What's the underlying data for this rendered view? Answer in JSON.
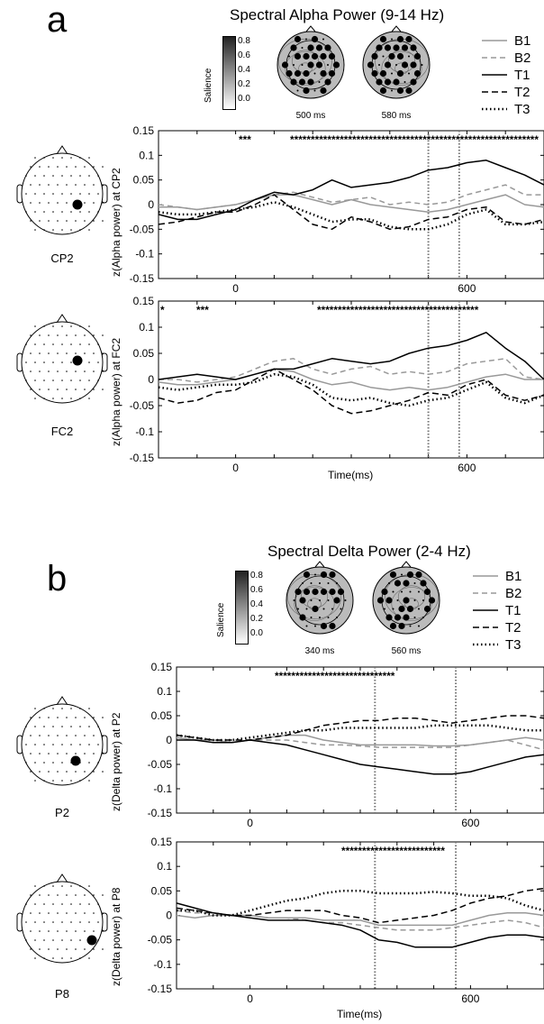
{
  "panels": [
    {
      "letter": "a",
      "title": "Spectral Alpha Power (9-14 Hz)",
      "colorbar": {
        "label": "Salience",
        "ticks": [
          "0.8",
          "0.6",
          "0.4",
          "0.2",
          "0.0"
        ]
      },
      "topo_times": [
        "500 ms",
        "580 ms"
      ],
      "legend": [
        "B1",
        "B2",
        "T1",
        "T2",
        "T3"
      ],
      "plots": [
        {
          "electrode": "CP2",
          "ylabel": "z(Alpha power) at CP2",
          "xlabel": "",
          "sig": "***",
          "sig2": "************************************************************"
        },
        {
          "electrode": "FC2",
          "ylabel": "z(Alpha power) at FC2",
          "xlabel": "Time(ms)",
          "sig": "***",
          "sig2": "***************************************",
          "sig0": "*"
        }
      ]
    },
    {
      "letter": "b",
      "title": "Spectral Delta Power (2-4 Hz)",
      "colorbar": {
        "label": "Salience",
        "ticks": [
          "0.8",
          "0.6",
          "0.4",
          "0.2",
          "0.0"
        ]
      },
      "topo_times": [
        "340 ms",
        "560 ms"
      ],
      "legend": [
        "B1",
        "B2",
        "T1",
        "T2",
        "T3"
      ],
      "plots": [
        {
          "electrode": "P2",
          "ylabel": "z(Delta power) at P2",
          "xlabel": "",
          "sig": "",
          "sig2": "*****************************"
        },
        {
          "electrode": "P8",
          "ylabel": "z(Delta power) at P8",
          "xlabel": "Time(ms)",
          "sig": "",
          "sig2": "*************************"
        }
      ]
    }
  ],
  "chart_data": [
    {
      "type": "line",
      "title": "",
      "ylabel": "z(Alpha power) at CP2",
      "xlabel": "",
      "xlim": [
        -200,
        800
      ],
      "ylim": [
        -0.15,
        0.15
      ],
      "xticks": [
        0,
        600
      ],
      "yticks": [
        "0.15",
        "0.1",
        "0.05",
        "0",
        "-0.05",
        "-0.1",
        "-0.15"
      ],
      "vlines": [
        500,
        580
      ],
      "x": [
        -200,
        -150,
        -100,
        -50,
        0,
        50,
        100,
        150,
        200,
        250,
        300,
        350,
        400,
        450,
        500,
        550,
        600,
        650,
        700,
        750,
        800
      ],
      "series": [
        {
          "name": "B1",
          "values": [
            -0.005,
            -0.005,
            -0.01,
            -0.005,
            0.0,
            0.01,
            0.02,
            0.02,
            0.01,
            0.0,
            0.01,
            0.0,
            -0.005,
            -0.01,
            -0.015,
            -0.01,
            0.0,
            0.01,
            0.02,
            0.0,
            -0.005
          ]
        },
        {
          "name": "B2",
          "values": [
            0.0,
            -0.005,
            -0.01,
            -0.005,
            0.0,
            0.01,
            0.02,
            0.025,
            0.015,
            0.005,
            0.01,
            0.015,
            0.0,
            0.005,
            0.0,
            0.005,
            0.02,
            0.03,
            0.04,
            0.02,
            0.02
          ]
        },
        {
          "name": "T1",
          "values": [
            -0.02,
            -0.03,
            -0.03,
            -0.02,
            -0.01,
            0.01,
            0.025,
            0.02,
            0.03,
            0.05,
            0.035,
            0.04,
            0.045,
            0.055,
            0.07,
            0.075,
            0.085,
            0.09,
            0.075,
            0.06,
            0.04
          ]
        },
        {
          "name": "T2",
          "values": [
            -0.04,
            -0.035,
            -0.025,
            -0.015,
            -0.015,
            0.0,
            0.02,
            -0.01,
            -0.04,
            -0.05,
            -0.025,
            -0.035,
            -0.05,
            -0.045,
            -0.03,
            -0.025,
            -0.01,
            -0.005,
            -0.035,
            -0.04,
            -0.03
          ]
        },
        {
          "name": "T3",
          "values": [
            -0.015,
            -0.02,
            -0.02,
            -0.015,
            -0.01,
            -0.005,
            0.005,
            -0.005,
            -0.02,
            -0.035,
            -0.03,
            -0.03,
            -0.045,
            -0.05,
            -0.05,
            -0.04,
            -0.02,
            -0.01,
            -0.04,
            -0.04,
            -0.035
          ]
        }
      ]
    },
    {
      "type": "line",
      "title": "",
      "ylabel": "z(Alpha power) at FC2",
      "xlabel": "Time(ms)",
      "xlim": [
        -200,
        800
      ],
      "ylim": [
        -0.15,
        0.15
      ],
      "xticks": [
        0,
        600
      ],
      "yticks": [
        "0.15",
        "0.1",
        "0.05",
        "0",
        "-0.05",
        "-0.1",
        "-0.15"
      ],
      "vlines": [
        500,
        580
      ],
      "x": [
        -200,
        -150,
        -100,
        -50,
        0,
        50,
        100,
        150,
        200,
        250,
        300,
        350,
        400,
        450,
        500,
        550,
        600,
        650,
        700,
        750,
        800
      ],
      "series": [
        {
          "name": "B1",
          "values": [
            -0.005,
            -0.01,
            -0.01,
            -0.005,
            0.0,
            0.01,
            0.02,
            0.015,
            0.0,
            -0.01,
            -0.005,
            -0.015,
            -0.02,
            -0.015,
            -0.02,
            -0.015,
            -0.005,
            0.005,
            0.01,
            0.0,
            0.0
          ]
        },
        {
          "name": "B2",
          "values": [
            0.0,
            0.0,
            -0.005,
            0.0,
            0.005,
            0.02,
            0.035,
            0.04,
            0.02,
            0.01,
            0.02,
            0.025,
            0.01,
            0.015,
            0.01,
            0.015,
            0.03,
            0.035,
            0.04,
            0.005,
            0.0
          ]
        },
        {
          "name": "T1",
          "values": [
            0.0,
            0.005,
            0.01,
            0.005,
            0.0,
            0.01,
            0.02,
            0.02,
            0.03,
            0.04,
            0.035,
            0.03,
            0.035,
            0.05,
            0.06,
            0.065,
            0.075,
            0.09,
            0.06,
            0.035,
            0.0
          ]
        },
        {
          "name": "T2",
          "values": [
            -0.035,
            -0.045,
            -0.04,
            -0.025,
            -0.02,
            0.0,
            0.02,
            0.0,
            -0.02,
            -0.05,
            -0.065,
            -0.06,
            -0.05,
            -0.04,
            -0.025,
            -0.03,
            -0.01,
            0.0,
            -0.03,
            -0.04,
            -0.03
          ]
        },
        {
          "name": "T3",
          "values": [
            -0.015,
            -0.02,
            -0.015,
            -0.01,
            -0.01,
            -0.005,
            0.01,
            0.005,
            -0.01,
            -0.035,
            -0.04,
            -0.035,
            -0.045,
            -0.05,
            -0.04,
            -0.035,
            -0.02,
            -0.005,
            -0.035,
            -0.045,
            -0.03
          ]
        }
      ]
    },
    {
      "type": "line",
      "title": "",
      "ylabel": "z(Delta power) at P2",
      "xlabel": "",
      "xlim": [
        -200,
        800
      ],
      "ylim": [
        -0.15,
        0.15
      ],
      "xticks": [
        0,
        600
      ],
      "yticks": [
        "0.15",
        "0.1",
        "0.05",
        "0",
        "-0.05",
        "-0.1",
        "-0.15"
      ],
      "vlines": [
        340,
        560
      ],
      "x": [
        -200,
        -150,
        -100,
        -50,
        0,
        50,
        100,
        150,
        200,
        250,
        300,
        350,
        400,
        450,
        500,
        550,
        600,
        650,
        700,
        750,
        800
      ],
      "series": [
        {
          "name": "B1",
          "values": [
            0.005,
            0.0,
            0.0,
            -0.005,
            0.0,
            0.005,
            0.01,
            0.01,
            0.0,
            -0.005,
            -0.01,
            -0.01,
            -0.01,
            -0.01,
            -0.012,
            -0.012,
            -0.01,
            -0.005,
            0.0,
            0.005,
            0.0
          ]
        },
        {
          "name": "B2",
          "values": [
            0.005,
            0.0,
            0.0,
            -0.005,
            0.0,
            0.0,
            0.0,
            -0.005,
            -0.01,
            -0.01,
            -0.012,
            -0.015,
            -0.015,
            -0.015,
            -0.015,
            -0.015,
            -0.01,
            -0.005,
            0.0,
            -0.01,
            -0.02
          ]
        },
        {
          "name": "T1",
          "values": [
            0.0,
            0.0,
            -0.005,
            -0.005,
            0.0,
            -0.005,
            -0.01,
            -0.02,
            -0.03,
            -0.04,
            -0.05,
            -0.055,
            -0.06,
            -0.065,
            -0.07,
            -0.07,
            -0.065,
            -0.055,
            -0.045,
            -0.035,
            -0.03
          ]
        },
        {
          "name": "T2",
          "values": [
            0.01,
            0.005,
            0.0,
            0.0,
            0.0,
            0.005,
            0.01,
            0.02,
            0.03,
            0.035,
            0.04,
            0.04,
            0.045,
            0.045,
            0.04,
            0.035,
            0.04,
            0.045,
            0.05,
            0.05,
            0.045
          ]
        },
        {
          "name": "T3",
          "values": [
            0.01,
            0.005,
            0.0,
            0.0,
            0.005,
            0.01,
            0.015,
            0.02,
            0.02,
            0.025,
            0.025,
            0.025,
            0.025,
            0.025,
            0.03,
            0.03,
            0.03,
            0.03,
            0.025,
            0.02,
            0.02
          ]
        }
      ]
    },
    {
      "type": "line",
      "title": "",
      "ylabel": "z(Delta power) at P8",
      "xlabel": "Time(ms)",
      "xlim": [
        -200,
        800
      ],
      "ylim": [
        -0.15,
        0.15
      ],
      "xticks": [
        0,
        600
      ],
      "yticks": [
        "0.15",
        "0.1",
        "0.05",
        "0",
        "-0.05",
        "-0.1",
        "-0.15"
      ],
      "vlines": [
        340,
        560
      ],
      "x": [
        -200,
        -150,
        -100,
        -50,
        0,
        50,
        100,
        150,
        200,
        250,
        300,
        350,
        400,
        450,
        500,
        550,
        600,
        650,
        700,
        750,
        800
      ],
      "series": [
        {
          "name": "B1",
          "values": [
            0.0,
            -0.005,
            0.0,
            0.0,
            0.0,
            -0.005,
            -0.005,
            -0.005,
            -0.01,
            -0.01,
            -0.01,
            -0.02,
            -0.02,
            -0.02,
            -0.02,
            -0.02,
            -0.01,
            0.0,
            0.005,
            0.005,
            0.0
          ]
        },
        {
          "name": "B2",
          "values": [
            0.01,
            0.005,
            0.005,
            0.0,
            0.0,
            -0.005,
            -0.005,
            -0.01,
            -0.015,
            -0.015,
            -0.02,
            -0.025,
            -0.03,
            -0.03,
            -0.03,
            -0.025,
            -0.02,
            -0.015,
            -0.01,
            -0.015,
            -0.025
          ]
        },
        {
          "name": "T1",
          "values": [
            0.025,
            0.015,
            0.005,
            0.0,
            -0.005,
            -0.01,
            -0.01,
            -0.01,
            -0.015,
            -0.02,
            -0.03,
            -0.05,
            -0.055,
            -0.065,
            -0.065,
            -0.065,
            -0.055,
            -0.045,
            -0.04,
            -0.04,
            -0.045
          ]
        },
        {
          "name": "T2",
          "values": [
            0.015,
            0.01,
            0.005,
            0.0,
            0.0,
            0.005,
            0.01,
            0.01,
            0.01,
            0.0,
            -0.005,
            -0.015,
            -0.01,
            -0.005,
            0.0,
            0.01,
            0.025,
            0.035,
            0.04,
            0.05,
            0.055
          ]
        },
        {
          "name": "T3",
          "values": [
            0.01,
            0.01,
            0.0,
            0.0,
            0.01,
            0.02,
            0.03,
            0.035,
            0.045,
            0.05,
            0.05,
            0.045,
            0.045,
            0.045,
            0.048,
            0.045,
            0.04,
            0.04,
            0.035,
            0.02,
            0.01
          ]
        }
      ]
    }
  ]
}
